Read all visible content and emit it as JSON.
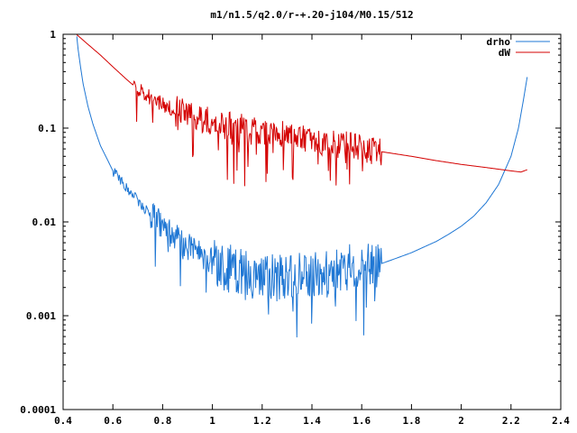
{
  "chart_data": {
    "type": "line",
    "title": "m1/n1.5/q2.0/r-+.20-j104/M0.15/512",
    "xlabel": "",
    "ylabel": "",
    "xlim": [
      0.4,
      2.4
    ],
    "ylim": [
      0.0001,
      1
    ],
    "yscale": "log",
    "grid": false,
    "legend": "top-right",
    "x_ticks": [
      {
        "value": 0.4,
        "label": "0.4"
      },
      {
        "value": 0.6,
        "label": "0.6"
      },
      {
        "value": 0.8,
        "label": "0.8"
      },
      {
        "value": 1.0,
        "label": "1"
      },
      {
        "value": 1.2,
        "label": "1.2"
      },
      {
        "value": 1.4,
        "label": "1.4"
      },
      {
        "value": 1.6,
        "label": "1.6"
      },
      {
        "value": 1.8,
        "label": "1.8"
      },
      {
        "value": 2.0,
        "label": "2"
      },
      {
        "value": 2.2,
        "label": "2.2"
      },
      {
        "value": 2.4,
        "label": "2.4"
      }
    ],
    "y_ticks": [
      {
        "value": 1,
        "label": "1"
      },
      {
        "value": 0.1,
        "label": "0.1"
      },
      {
        "value": 0.01,
        "label": "0.01"
      },
      {
        "value": 0.001,
        "label": "0.001"
      },
      {
        "value": 0.0001,
        "label": "0.0001"
      }
    ],
    "series": [
      {
        "name": "drho",
        "color": "#1f77d4",
        "x": [
          0.455,
          0.46,
          0.47,
          0.48,
          0.5,
          0.52,
          0.55,
          0.58,
          0.6,
          0.65,
          0.7,
          0.75,
          0.8,
          0.85,
          0.9,
          0.95,
          1.0,
          1.05,
          1.1,
          1.15,
          1.2,
          1.25,
          1.3,
          1.35,
          1.4,
          1.45,
          1.5,
          1.55,
          1.6,
          1.65,
          1.68,
          1.75,
          1.8,
          1.85,
          1.9,
          1.95,
          2.0,
          2.05,
          2.1,
          2.15,
          2.2,
          2.23,
          2.25,
          2.265
        ],
        "y": [
          0.95,
          0.7,
          0.45,
          0.3,
          0.17,
          0.11,
          0.065,
          0.045,
          0.035,
          0.024,
          0.017,
          0.012,
          0.009,
          0.0068,
          0.0055,
          0.0045,
          0.0038,
          0.0033,
          0.003,
          0.0028,
          0.0027,
          0.0026,
          0.0025,
          0.0026,
          0.0026,
          0.0028,
          0.003,
          0.0032,
          0.0034,
          0.0036,
          0.0036,
          0.0042,
          0.0047,
          0.0054,
          0.0062,
          0.0074,
          0.009,
          0.0115,
          0.016,
          0.025,
          0.05,
          0.1,
          0.2,
          0.35
        ]
      },
      {
        "name": "dW",
        "color": "#d40000",
        "x": [
          0.455,
          0.5,
          0.55,
          0.6,
          0.65,
          0.7,
          0.75,
          0.8,
          0.85,
          0.9,
          0.95,
          1.0,
          1.05,
          1.1,
          1.15,
          1.2,
          1.25,
          1.3,
          1.35,
          1.4,
          1.45,
          1.5,
          1.55,
          1.6,
          1.65,
          1.68,
          1.8,
          1.9,
          2.0,
          2.1,
          2.2,
          2.24,
          2.265
        ],
        "y": [
          0.99,
          0.78,
          0.6,
          0.45,
          0.34,
          0.26,
          0.215,
          0.18,
          0.158,
          0.14,
          0.128,
          0.118,
          0.11,
          0.103,
          0.097,
          0.092,
          0.087,
          0.083,
          0.079,
          0.075,
          0.071,
          0.068,
          0.064,
          0.061,
          0.058,
          0.056,
          0.05,
          0.045,
          0.041,
          0.038,
          0.035,
          0.034,
          0.036
        ]
      }
    ]
  }
}
